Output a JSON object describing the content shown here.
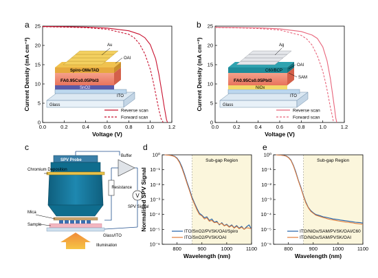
{
  "panel_labels": {
    "a": "a",
    "b": "b",
    "c": "c",
    "d": "d",
    "e": "e"
  },
  "colors": {
    "reverse": "#c8102e",
    "forward": "#c8102e",
    "reverse_b": "#e8647a",
    "forward_b": "#e8647a",
    "blue": "#1f5fa8",
    "orange": "#e07b39",
    "region": "#fbf6dc"
  },
  "device_a": {
    "top": "Au",
    "oai": "OAI",
    "htl": "Spiro-OMeTAD",
    "pvk": "FA0.95Cs0.05PbI3",
    "etl": "SnO2",
    "ito": "ITO",
    "glass": "Glass"
  },
  "device_b": {
    "top": "Ag",
    "oai": "OAI",
    "c60": "C60/BCP",
    "sam": "SAM",
    "pvk": "FA0.95Cs0.05PbI3",
    "nio": "NiOx",
    "ito": "ITO",
    "glass": "Glass"
  },
  "diagram_c": {
    "probe": "SPV Probe",
    "buffer": "Buffer",
    "chromium": "Chromium Deposition",
    "resistance": "Resistance",
    "v": "V",
    "spv": "SPV Signal",
    "mica": "Mica",
    "sample": "Sample",
    "glass_ito": "Glass/ITO",
    "illumination": "Illumination"
  },
  "chart_data": [
    {
      "type": "line",
      "panel": "a",
      "xlabel": "Voltage (V)",
      "ylabel": "Current Density (mA cm⁻²)",
      "xlim": [
        0.0,
        1.2
      ],
      "ylim": [
        0,
        25
      ],
      "xticks": [
        "0.0",
        "0.2",
        "0.4",
        "0.6",
        "0.8",
        "1.0",
        "1.2"
      ],
      "yticks": [
        "0",
        "5",
        "10",
        "15",
        "20",
        "25"
      ],
      "series": [
        {
          "name": "Reverse scan",
          "style": "solid",
          "x": [
            0,
            0.2,
            0.4,
            0.6,
            0.8,
            0.9,
            0.95,
            1.0,
            1.05,
            1.08,
            1.11,
            1.13,
            1.15,
            1.16
          ],
          "y": [
            24.9,
            24.85,
            24.75,
            24.5,
            23.8,
            22.9,
            22.0,
            20.2,
            16.5,
            12.5,
            7.5,
            4.0,
            0.8,
            0
          ]
        },
        {
          "name": "Forward scan",
          "style": "dashed",
          "x": [
            0,
            0.2,
            0.4,
            0.6,
            0.8,
            0.85,
            0.9,
            0.95,
            1.0,
            1.03,
            1.06,
            1.08,
            1.1,
            1.12
          ],
          "y": [
            24.85,
            24.75,
            24.6,
            24.2,
            22.9,
            22.0,
            20.4,
            17.8,
            13.8,
            10.2,
            6.0,
            3.3,
            1.0,
            0
          ]
        }
      ]
    },
    {
      "type": "line",
      "panel": "b",
      "xlabel": "Voltage (V)",
      "ylabel": "Current Density (mA cm⁻²)",
      "xlim": [
        0.0,
        1.2
      ],
      "ylim": [
        0,
        25
      ],
      "xticks": [
        "0.0",
        "0.2",
        "0.4",
        "0.6",
        "0.8",
        "1.0",
        "1.2"
      ],
      "yticks": [
        "0",
        "5",
        "10",
        "15",
        "20",
        "25"
      ],
      "series": [
        {
          "name": "Reverse scan",
          "style": "solid",
          "x": [
            0,
            0.2,
            0.4,
            0.6,
            0.8,
            0.9,
            0.95,
            1.0,
            1.04,
            1.07,
            1.09,
            1.11,
            1.12,
            1.13
          ],
          "y": [
            24.7,
            24.65,
            24.55,
            24.3,
            23.6,
            22.7,
            21.8,
            19.6,
            16.0,
            11.5,
            7.5,
            3.5,
            1.2,
            0
          ]
        },
        {
          "name": "Forward scan",
          "style": "dashed",
          "x": [
            0,
            0.2,
            0.4,
            0.6,
            0.8,
            0.85,
            0.9,
            0.95,
            1.0,
            1.03,
            1.05,
            1.07,
            1.09,
            1.1
          ],
          "y": [
            24.65,
            24.55,
            24.4,
            24.0,
            22.6,
            21.7,
            20.1,
            17.3,
            13.3,
            9.8,
            7.0,
            4.0,
            1.5,
            0
          ]
        }
      ]
    },
    {
      "type": "line",
      "panel": "d",
      "xlabel": "Wavelength (nm)",
      "ylabel": "Normalised SPV Signal",
      "yscale": "log",
      "xlim": [
        740,
        1100
      ],
      "ylim": [
        1e-06,
        1
      ],
      "xticks": [
        "800",
        "900",
        "1000",
        "1100"
      ],
      "yticks": [
        "10⁻⁶",
        "10⁻⁵",
        "10⁻⁴",
        "10⁻³",
        "10⁻²",
        "10⁻¹",
        "10⁰"
      ],
      "region": {
        "label": "Sub-gap Region",
        "x": [
          860,
          1100
        ]
      },
      "series": [
        {
          "name": "ITO/SnO2/PVSK/OAI/Spiro",
          "color": "blue",
          "x": [
            750,
            760,
            770,
            780,
            790,
            800,
            810,
            820,
            830,
            840,
            850,
            860,
            870,
            880,
            890,
            900,
            910,
            920,
            930,
            940,
            950,
            960,
            970,
            980,
            990,
            1000,
            1010,
            1020,
            1030,
            1040,
            1050,
            1060,
            1070,
            1080,
            1090,
            1100
          ],
          "y": [
            1,
            0.98,
            0.95,
            0.9,
            0.8,
            0.6,
            0.35,
            0.15,
            0.05,
            0.015,
            0.005,
            0.0015,
            0.0006,
            0.00025,
            0.00012,
            9e-05,
            6e-05,
            7e-05,
            4e-05,
            5e-05,
            3e-05,
            3.5e-05,
            2e-05,
            2.8e-05,
            1.8e-05,
            2.2e-05,
            1.5e-05,
            2e-05,
            1.3e-05,
            1.8e-05,
            1.2e-05,
            1.6e-05,
            1e-05,
            1.5e-05,
            2e-05,
            1e-05
          ]
        },
        {
          "name": "ITO/SnO2/PVSK/OAI",
          "color": "orange",
          "x": [
            750,
            760,
            770,
            780,
            790,
            800,
            810,
            820,
            830,
            840,
            850,
            860,
            870,
            880,
            890,
            900,
            910,
            920,
            930,
            940,
            950,
            960,
            970,
            980,
            990,
            1000,
            1010,
            1020,
            1030,
            1040,
            1050,
            1060,
            1070,
            1080,
            1090,
            1100
          ],
          "y": [
            1,
            0.97,
            0.93,
            0.87,
            0.76,
            0.55,
            0.3,
            0.12,
            0.04,
            0.012,
            0.004,
            0.0012,
            0.0005,
            0.0002,
            0.0001,
            8e-05,
            5e-05,
            6e-05,
            3.5e-05,
            4e-05,
            2.8e-05,
            3e-05,
            2.2e-05,
            2.5e-05,
            1.7e-05,
            2e-05,
            1.4e-05,
            1.8e-05,
            1.2e-05,
            1.6e-05,
            1.1e-05,
            1.4e-05,
            1e-05,
            1.3e-05,
            1.2e-05,
            1.1e-05
          ]
        }
      ]
    },
    {
      "type": "line",
      "panel": "e",
      "xlabel": "Wavelength (nm)",
      "ylabel": "",
      "yscale": "log",
      "xlim": [
        740,
        1100
      ],
      "ylim": [
        1e-06,
        1
      ],
      "xticks": [
        "800",
        "900",
        "1000",
        "1100"
      ],
      "yticks": [
        "10⁻⁶",
        "10⁻⁵",
        "10⁻⁴",
        "10⁻³",
        "10⁻²",
        "10⁻¹",
        "10⁰"
      ],
      "region": {
        "label": "Sub-gap Region",
        "x": [
          860,
          1100
        ]
      },
      "series": [
        {
          "name": "ITO/NiOx/SAM/PVSK/OAI/C60",
          "color": "blue",
          "x": [
            750,
            760,
            770,
            780,
            790,
            800,
            810,
            820,
            830,
            840,
            850,
            860,
            870,
            880,
            890,
            900,
            910,
            920,
            930,
            940,
            950,
            960,
            970,
            980,
            990,
            1000,
            1010,
            1020,
            1030,
            1040,
            1050,
            1060,
            1070,
            1080,
            1090,
            1100
          ],
          "y": [
            1,
            0.98,
            0.96,
            0.92,
            0.85,
            0.68,
            0.45,
            0.2,
            0.07,
            0.02,
            0.007,
            0.002,
            0.0007,
            0.0003,
            0.00018,
            0.00013,
            0.0001,
            9e-05,
            8e-05,
            7e-05,
            6.5e-05,
            6e-05,
            5.5e-05,
            5e-05,
            4.8e-05,
            4.5e-05,
            4.2e-05,
            4e-05,
            3.8e-05,
            3.6e-05,
            3.4e-05,
            3.2e-05,
            3e-05,
            2.9e-05,
            2.8e-05,
            2.6e-05
          ]
        },
        {
          "name": "ITO/NiOx/SAM/PVSK/OAI",
          "color": "orange",
          "x": [
            750,
            760,
            770,
            780,
            790,
            800,
            810,
            820,
            830,
            840,
            850,
            860,
            870,
            880,
            890,
            900,
            910,
            920,
            930,
            940,
            950,
            960,
            970,
            980,
            990,
            1000,
            1010,
            1020,
            1030,
            1040,
            1050,
            1060,
            1070,
            1080,
            1090,
            1100
          ],
          "y": [
            1,
            0.97,
            0.95,
            0.9,
            0.82,
            0.65,
            0.42,
            0.18,
            0.06,
            0.018,
            0.006,
            0.0018,
            0.0006,
            0.00028,
            0.00016,
            0.00012,
            9e-05,
            8e-05,
            7e-05,
            6.2e-05,
            5.6e-05,
            5e-05,
            4.6e-05,
            4.3e-05,
            4e-05,
            3.7e-05,
            3.5e-05,
            3.3e-05,
            3.1e-05,
            3e-05,
            2.8e-05,
            2.7e-05,
            2.5e-05,
            2.4e-05,
            2.3e-05,
            2.2e-05
          ]
        }
      ]
    }
  ]
}
